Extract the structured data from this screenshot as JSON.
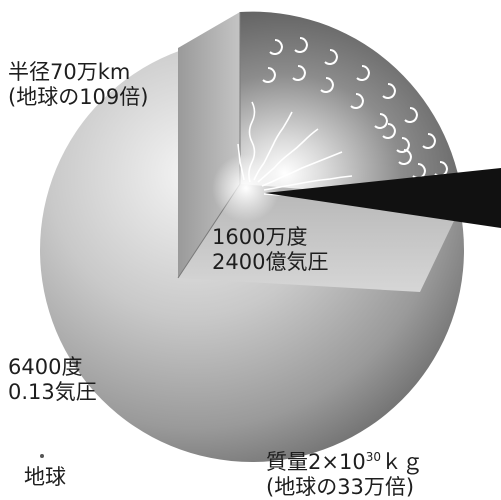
{
  "radius": {
    "line1": "半径70万km",
    "line2": "(地球の109倍)"
  },
  "core": {
    "line1": "1600万度",
    "line2": "2400億気圧"
  },
  "surface": {
    "line1": "6400度",
    "line2": "0.13気圧"
  },
  "earth": {
    "label": "地球"
  },
  "mass": {
    "prefix": "質量2×10",
    "exponent": "30",
    "unit": "ｋｇ",
    "line2": "(地球の33万倍)"
  }
}
